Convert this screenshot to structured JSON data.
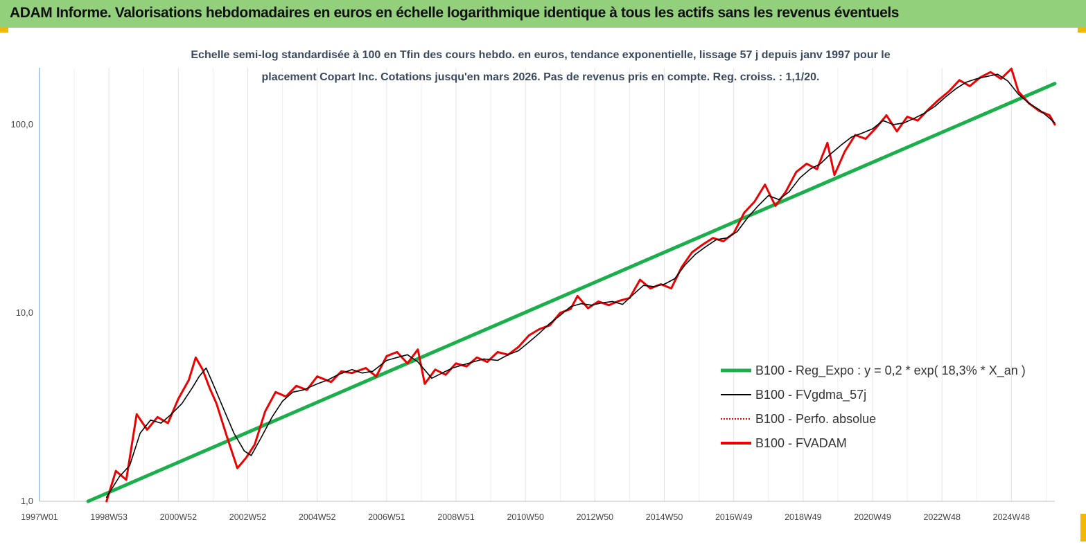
{
  "header": {
    "title": "ADAM Informe. Valorisations hebdomadaires en euros en échelle logarithmique identique à tous les actifs sans les revenus éventuels"
  },
  "colors": {
    "header_bg": "#92d07c",
    "accent_corner": "#f2b705",
    "series_trend": "#1aaf4b",
    "series_smooth": "#000000",
    "series_perf": "#e00000",
    "series_fvadam": "#ee0000"
  },
  "chart_data": {
    "type": "line",
    "title": "Echelle semi-log standardisée à 100 en Tfin des cours hebdo. en euros, tendance exponentielle, lissage 57 j depuis janv 1997 pour le placement Copart Inc. Cotations jusqu'en mars 2026. Pas de revenus pris en compte. Reg. croiss. : 1,1/20.",
    "title_lines": [
      "Echelle semi-log standardisée à 100 en Tfin des cours hebdo. en euros, tendance exponentielle, lissage 57 j depuis janv 1997 pour le",
      "placement Copart Inc. Cotations jusqu'en mars 2026. Pas de revenus pris en compte. Reg. croiss. : 1,1/20."
    ],
    "y_scale": "log",
    "ylim": [
      1,
      200
    ],
    "y_ticks": [
      {
        "value": 1,
        "label": "1,0"
      },
      {
        "value": 10,
        "label": "10,0"
      },
      {
        "value": 100,
        "label": "100,0"
      }
    ],
    "xlim": [
      1997.0,
      2026.25
    ],
    "x_ticks": [
      {
        "value": 1997.0,
        "label": "1997W01"
      },
      {
        "value": 1999.0,
        "label": "1998W53"
      },
      {
        "value": 2001.0,
        "label": "2000W52"
      },
      {
        "value": 2003.0,
        "label": "2002W52"
      },
      {
        "value": 2005.0,
        "label": "2004W52"
      },
      {
        "value": 2007.0,
        "label": "2006W51"
      },
      {
        "value": 2009.0,
        "label": "2008W51"
      },
      {
        "value": 2011.0,
        "label": "2010W50"
      },
      {
        "value": 2013.0,
        "label": "2012W50"
      },
      {
        "value": 2015.0,
        "label": "2014W50"
      },
      {
        "value": 2017.0,
        "label": "2016W49"
      },
      {
        "value": 2019.0,
        "label": "2018W49"
      },
      {
        "value": 2021.0,
        "label": "2020W49"
      },
      {
        "value": 2023.0,
        "label": "2022W48"
      },
      {
        "value": 2025.0,
        "label": "2024W48"
      }
    ],
    "grid": "vertical",
    "legend_position": "bottom-right",
    "series": [
      {
        "name": "B100 - Reg_Expo : y = 0,2 * exp( 18,3% *  X_an )",
        "style": "thick-green",
        "x": [
          1998.4,
          2026.25
        ],
        "y": [
          1.0,
          165
        ]
      },
      {
        "name": "B100 - FVgdma_57j",
        "style": "thin-black",
        "x": [
          1998.93,
          1999.3,
          1999.6,
          1999.9,
          2000.2,
          2000.5,
          2000.8,
          2001.1,
          2001.4,
          2001.6,
          2001.8,
          2002.0,
          2002.3,
          2002.6,
          2002.9,
          2003.1,
          2003.4,
          2003.7,
          2004.0,
          2004.3,
          2004.6,
          2005.0,
          2005.3,
          2005.6,
          2006.0,
          2006.3,
          2006.6,
          2007.0,
          2007.3,
          2007.6,
          2007.9,
          2008.3,
          2008.6,
          2008.9,
          2009.2,
          2009.5,
          2009.8,
          2010.2,
          2010.5,
          2010.8,
          2011.1,
          2011.4,
          2011.7,
          2012.0,
          2012.3,
          2012.6,
          2012.9,
          2013.2,
          2013.5,
          2013.8,
          2014.1,
          2014.4,
          2014.7,
          2015.0,
          2015.3,
          2015.6,
          2015.9,
          2016.2,
          2016.5,
          2016.8,
          2017.1,
          2017.4,
          2017.7,
          2018.0,
          2018.3,
          2018.6,
          2018.9,
          2019.2,
          2019.5,
          2019.8,
          2020.1,
          2020.4,
          2020.7,
          2021.0,
          2021.3,
          2021.6,
          2021.9,
          2022.2,
          2022.5,
          2022.8,
          2023.1,
          2023.4,
          2023.7,
          2024.0,
          2024.3,
          2024.6,
          2024.9,
          2025.2,
          2025.5,
          2025.8,
          2026.1,
          2026.25
        ],
        "y": [
          1.05,
          1.35,
          1.55,
          2.3,
          2.7,
          2.6,
          2.9,
          3.3,
          4.0,
          4.6,
          5.1,
          4.2,
          3.1,
          2.3,
          1.85,
          1.75,
          2.2,
          2.8,
          3.4,
          3.8,
          3.9,
          4.2,
          4.4,
          4.7,
          5.0,
          4.8,
          4.9,
          5.6,
          5.8,
          6.0,
          5.5,
          4.5,
          4.8,
          5.1,
          5.3,
          5.5,
          5.7,
          5.6,
          6.0,
          6.3,
          7.0,
          7.8,
          8.8,
          9.7,
          10.8,
          11.2,
          11.0,
          11.3,
          11.5,
          11.1,
          12.5,
          14.0,
          13.8,
          14.2,
          15.2,
          18.0,
          20.5,
          22.5,
          24.5,
          25.0,
          27.0,
          32.0,
          37.0,
          42.0,
          40.0,
          44.0,
          52.0,
          58.0,
          62.0,
          70.0,
          78.0,
          86.0,
          90.0,
          95.0,
          105.0,
          100.0,
          102.0,
          108.0,
          115.0,
          125.0,
          140.0,
          155.0,
          168.0,
          175.0,
          180.0,
          185.0,
          170.0,
          145.0,
          130.0,
          120.0,
          108.0,
          102.0
        ]
      },
      {
        "name": "B100 - Perfo. absolue",
        "style": "dotted-red",
        "x": [
          1998.93,
          1999.2,
          1999.5,
          1999.8,
          2000.1,
          2000.4,
          2000.7,
          2001.0,
          2001.3,
          2001.5,
          2001.7,
          2001.9,
          2002.1,
          2002.4,
          2002.7,
          2002.95,
          2003.2,
          2003.5,
          2003.8,
          2004.1,
          2004.4,
          2004.7,
          2005.0,
          2005.4,
          2005.7,
          2006.0,
          2006.4,
          2006.7,
          2007.0,
          2007.3,
          2007.6,
          2007.9,
          2008.1,
          2008.4,
          2008.7,
          2009.0,
          2009.3,
          2009.6,
          2009.9,
          2010.2,
          2010.5,
          2010.8,
          2011.1,
          2011.4,
          2011.7,
          2012.0,
          2012.3,
          2012.5,
          2012.8,
          2013.1,
          2013.4,
          2013.7,
          2014.0,
          2014.3,
          2014.6,
          2014.9,
          2015.2,
          2015.5,
          2015.8,
          2016.1,
          2016.4,
          2016.7,
          2017.0,
          2017.3,
          2017.6,
          2017.9,
          2018.2,
          2018.5,
          2018.8,
          2019.1,
          2019.4,
          2019.7,
          2019.9,
          2020.2,
          2020.5,
          2020.8,
          2021.1,
          2021.4,
          2021.7,
          2022.0,
          2022.3,
          2022.6,
          2022.9,
          2023.2,
          2023.5,
          2023.8,
          2024.1,
          2024.4,
          2024.7,
          2025.0,
          2025.2,
          2025.5,
          2025.8,
          2026.1,
          2026.25
        ],
        "y": [
          1.0,
          1.45,
          1.3,
          2.9,
          2.4,
          2.8,
          2.6,
          3.5,
          4.4,
          5.8,
          5.0,
          4.0,
          3.3,
          2.2,
          1.5,
          1.7,
          2.0,
          3.0,
          3.8,
          3.6,
          4.1,
          3.9,
          4.6,
          4.3,
          4.9,
          4.8,
          5.1,
          4.6,
          5.9,
          6.2,
          5.4,
          6.4,
          4.2,
          5.0,
          4.7,
          5.4,
          5.2,
          5.8,
          5.5,
          6.2,
          6.0,
          6.6,
          7.6,
          8.2,
          8.6,
          10.0,
          10.5,
          12.3,
          10.6,
          11.5,
          11.0,
          11.6,
          12.0,
          15.0,
          13.5,
          14.2,
          13.5,
          17.5,
          21.0,
          23.0,
          25.0,
          24.0,
          26.5,
          34.0,
          39.0,
          48.0,
          37.0,
          44.0,
          56.0,
          62.0,
          58.0,
          80.0,
          54.0,
          72.0,
          88.0,
          84.0,
          96.0,
          112.0,
          92.0,
          110.0,
          105.0,
          120.0,
          135.0,
          150.0,
          172.0,
          160.0,
          178.0,
          190.0,
          175.0,
          198.0,
          150.0,
          130.0,
          118.0,
          112.0,
          100.0
        ]
      },
      {
        "name": "B100 - FVADAM",
        "style": "thick-red",
        "x": [
          1998.93,
          1999.2,
          1999.5,
          1999.8,
          2000.1,
          2000.4,
          2000.7,
          2001.0,
          2001.3,
          2001.5,
          2001.7,
          2001.9,
          2002.1,
          2002.4,
          2002.7,
          2002.95,
          2003.2,
          2003.5,
          2003.8,
          2004.1,
          2004.4,
          2004.7,
          2005.0,
          2005.4,
          2005.7,
          2006.0,
          2006.4,
          2006.7,
          2007.0,
          2007.3,
          2007.6,
          2007.9,
          2008.1,
          2008.4,
          2008.7,
          2009.0,
          2009.3,
          2009.6,
          2009.9,
          2010.2,
          2010.5,
          2010.8,
          2011.1,
          2011.4,
          2011.7,
          2012.0,
          2012.3,
          2012.5,
          2012.8,
          2013.1,
          2013.4,
          2013.7,
          2014.0,
          2014.3,
          2014.6,
          2014.9,
          2015.2,
          2015.5,
          2015.8,
          2016.1,
          2016.4,
          2016.7,
          2017.0,
          2017.3,
          2017.6,
          2017.9,
          2018.2,
          2018.5,
          2018.8,
          2019.1,
          2019.4,
          2019.7,
          2019.9,
          2020.2,
          2020.5,
          2020.8,
          2021.1,
          2021.4,
          2021.7,
          2022.0,
          2022.3,
          2022.6,
          2022.9,
          2023.2,
          2023.5,
          2023.8,
          2024.1,
          2024.4,
          2024.7,
          2025.0,
          2025.2,
          2025.5,
          2025.8,
          2026.1,
          2026.25
        ],
        "y": [
          1.0,
          1.45,
          1.3,
          2.9,
          2.4,
          2.8,
          2.6,
          3.5,
          4.4,
          5.8,
          5.0,
          4.0,
          3.3,
          2.2,
          1.5,
          1.7,
          2.0,
          3.0,
          3.8,
          3.6,
          4.1,
          3.9,
          4.6,
          4.3,
          4.9,
          4.8,
          5.1,
          4.6,
          5.9,
          6.2,
          5.4,
          6.4,
          4.2,
          5.0,
          4.7,
          5.4,
          5.2,
          5.8,
          5.5,
          6.2,
          6.0,
          6.6,
          7.6,
          8.2,
          8.6,
          10.0,
          10.5,
          12.3,
          10.6,
          11.5,
          11.0,
          11.6,
          12.0,
          15.0,
          13.5,
          14.2,
          13.5,
          17.5,
          21.0,
          23.0,
          25.0,
          24.0,
          26.5,
          34.0,
          39.0,
          48.0,
          37.0,
          44.0,
          56.0,
          62.0,
          58.0,
          80.0,
          54.0,
          72.0,
          88.0,
          84.0,
          96.0,
          112.0,
          92.0,
          110.0,
          105.0,
          120.0,
          135.0,
          150.0,
          172.0,
          160.0,
          178.0,
          190.0,
          175.0,
          198.0,
          150.0,
          130.0,
          118.0,
          112.0,
          100.0
        ]
      }
    ]
  }
}
